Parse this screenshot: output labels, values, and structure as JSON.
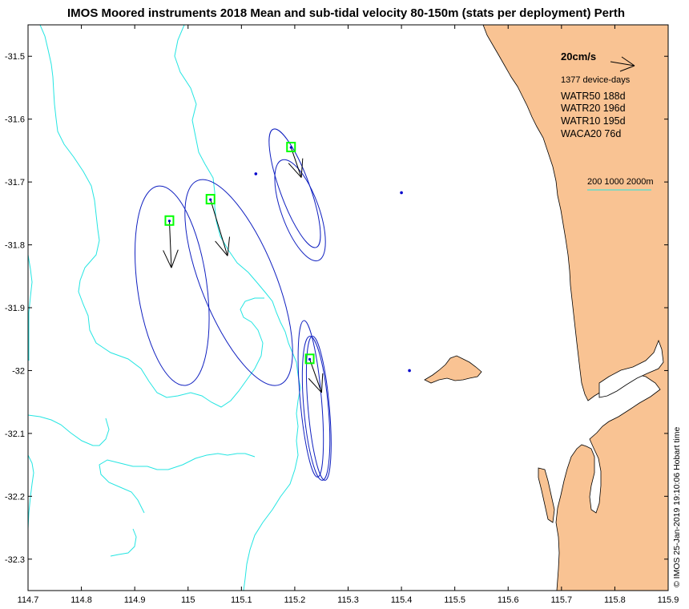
{
  "chart_data": {
    "type": "vector-map",
    "title": "IMOS Moored instruments 2018 Mean and sub-tidal velocity 80-150m (stats per deployment) Perth",
    "xlabel": "",
    "ylabel": "",
    "xlim": [
      114.7,
      115.9
    ],
    "ylim": [
      -32.35,
      -31.45
    ],
    "x_ticks": [
      "114.7",
      "114.8",
      "114.9",
      "115",
      "115.1",
      "115.2",
      "115.3",
      "115.4",
      "115.5",
      "115.6",
      "115.7",
      "115.8",
      "115.9"
    ],
    "y_ticks": [
      "-31.5",
      "-31.6",
      "-31.7",
      "-31.8",
      "-31.9",
      "-32",
      "-32.1",
      "-32.2",
      "-32.3"
    ],
    "scale_label": "20cm/s",
    "scale_speed_cms": 20,
    "device_days_label": "1377 device-days",
    "deployments": [
      {
        "name": "WATR50 188d",
        "lon": 114.965,
        "lat": -31.762,
        "u": 0.5,
        "v": -11.8,
        "ellipse": {
          "cx": 114.97,
          "cy": -31.865,
          "a_deg": 0.16,
          "b_deg": 0.065,
          "angle": -8
        }
      },
      {
        "name": "WATR20 196d",
        "lon": 115.042,
        "lat": -31.728,
        "u": 4.3,
        "v": -14.2,
        "ellipse": {
          "cx": 115.095,
          "cy": -31.86,
          "a_deg": 0.175,
          "b_deg": 0.07,
          "angle": -22
        }
      },
      {
        "name": "WATR10 195d",
        "lon": 115.193,
        "lat": -31.645,
        "u": 2.6,
        "v": -7.6,
        "ellipse": {
          "cx": 115.2,
          "cy": -31.71,
          "a_deg": 0.1,
          "b_deg": 0.028,
          "angle": -20
        },
        "ellipse2": {
          "cx": 115.21,
          "cy": -31.745,
          "a_deg": 0.085,
          "b_deg": 0.035,
          "angle": -20
        }
      },
      {
        "name": "WACA20 76d",
        "lon": 115.228,
        "lat": -31.982,
        "u": 3.0,
        "v": -8.4,
        "ellipse": {
          "cx": 115.23,
          "cy": -32.045,
          "a_deg": 0.125,
          "b_deg": 0.02,
          "angle": -5
        },
        "ellipse2": {
          "cx": 115.24,
          "cy": -32.06,
          "a_deg": 0.115,
          "b_deg": 0.023,
          "angle": -5
        },
        "ellipse3": {
          "cx": 115.245,
          "cy": -32.06,
          "a_deg": 0.115,
          "b_deg": 0.02,
          "angle": -5
        }
      }
    ],
    "extra_points": [
      {
        "lon": 115.127,
        "lat": -31.687
      },
      {
        "lon": 115.4,
        "lat": -31.717
      },
      {
        "lon": 115.415,
        "lat": -32.0
      }
    ],
    "contour_legend": "200 1000 2000m",
    "side_label": "© IMOS 25-Jan-2019 19:10:06 Hobart time"
  },
  "colors": {
    "land": "#f9c393",
    "contour": "#24e5e2",
    "ellipse": "#1020c0",
    "marker": "#00ff00",
    "arrow": "#000000",
    "point": "#0000cc"
  }
}
